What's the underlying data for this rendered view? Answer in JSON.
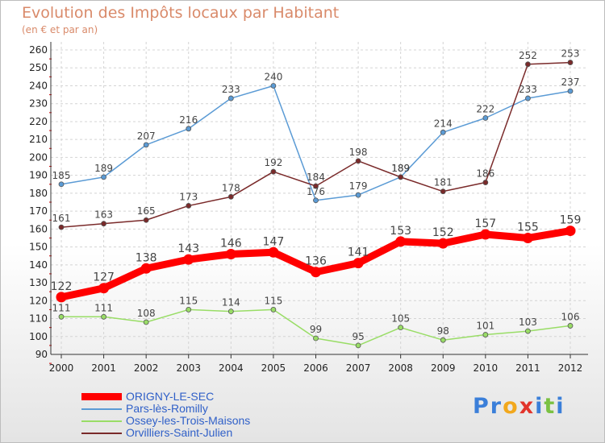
{
  "chart_data": {
    "type": "line",
    "title": "Evolution des Impôts locaux par Habitant",
    "subtitle": "(en € et par an)",
    "xlabel": "",
    "ylabel": "",
    "x": [
      "2000",
      "2001",
      "2002",
      "2003",
      "2004",
      "2005",
      "2006",
      "2007",
      "2008",
      "2009",
      "2010",
      "2011",
      "2012"
    ],
    "ylim": [
      90,
      260
    ],
    "yticks": [
      90,
      100,
      110,
      120,
      130,
      140,
      150,
      160,
      170,
      180,
      190,
      200,
      210,
      220,
      230,
      240,
      250,
      260
    ],
    "grid": true,
    "legend_position": "bottom-left",
    "series": [
      {
        "name": "ORIGNY-LE-SEC",
        "color": "#ff0000",
        "values": [
          122,
          127,
          138,
          143,
          146,
          147,
          136,
          141,
          153,
          152,
          157,
          155,
          159
        ]
      },
      {
        "name": "Pars-lès-Romilly",
        "color": "#5b9bd5",
        "values": [
          185,
          189,
          207,
          216,
          233,
          240,
          176,
          179,
          189,
          214,
          222,
          233,
          237
        ]
      },
      {
        "name": "Ossey-les-Trois-Maisons",
        "color": "#99dd66",
        "values": [
          111,
          111,
          108,
          115,
          114,
          115,
          99,
          95,
          105,
          98,
          101,
          103,
          106
        ]
      },
      {
        "name": "Orvilliers-Saint-Julien",
        "color": "#7a2a2a",
        "values": [
          161,
          163,
          165,
          173,
          178,
          192,
          184,
          198,
          189,
          181,
          186,
          252,
          253
        ]
      }
    ]
  },
  "logo": {
    "text": "Proxiti"
  }
}
